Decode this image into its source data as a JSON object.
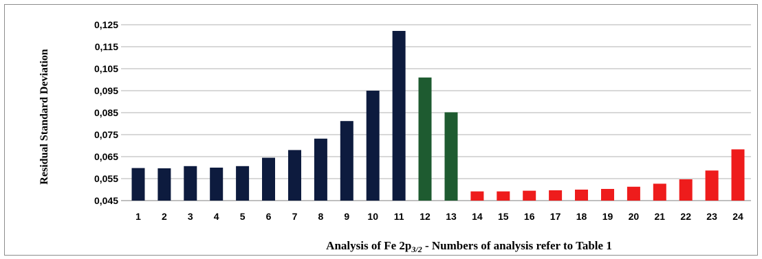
{
  "chart_data": {
    "type": "bar",
    "title": "",
    "xlabel_parts": [
      "Analysis of Fe 2p",
      "3/2",
      " - Numbers of analysis refer to Table 1"
    ],
    "ylabel": "Residual Standard Deviation",
    "ylim": [
      0.045,
      0.125
    ],
    "yticks": [
      "0,045",
      "0,055",
      "0,065",
      "0,075",
      "0,085",
      "0,095",
      "0,105",
      "0,115",
      "0,125"
    ],
    "grid": true,
    "categories": [
      "1",
      "2",
      "3",
      "4",
      "5",
      "6",
      "7",
      "8",
      "9",
      "10",
      "11",
      "12",
      "13",
      "14",
      "15",
      "16",
      "17",
      "18",
      "19",
      "20",
      "21",
      "22",
      "23",
      "24"
    ],
    "values": [
      0.0598,
      0.0597,
      0.0607,
      0.06,
      0.0607,
      0.0645,
      0.068,
      0.0732,
      0.0812,
      0.095,
      0.1222,
      0.101,
      0.0852,
      0.0492,
      0.0492,
      0.0495,
      0.0497,
      0.05,
      0.0503,
      0.0513,
      0.0527,
      0.0547,
      0.0587,
      0.0683
    ],
    "bar_colors": [
      "#0d1b3e",
      "#0d1b3e",
      "#0d1b3e",
      "#0d1b3e",
      "#0d1b3e",
      "#0d1b3e",
      "#0d1b3e",
      "#0d1b3e",
      "#0d1b3e",
      "#0d1b3e",
      "#0d1b3e",
      "#1e5b30",
      "#1e5b30",
      "#ee1c1c",
      "#ee1c1c",
      "#ee1c1c",
      "#ee1c1c",
      "#ee1c1c",
      "#ee1c1c",
      "#ee1c1c",
      "#ee1c1c",
      "#ee1c1c",
      "#ee1c1c",
      "#ee1c1c"
    ]
  }
}
